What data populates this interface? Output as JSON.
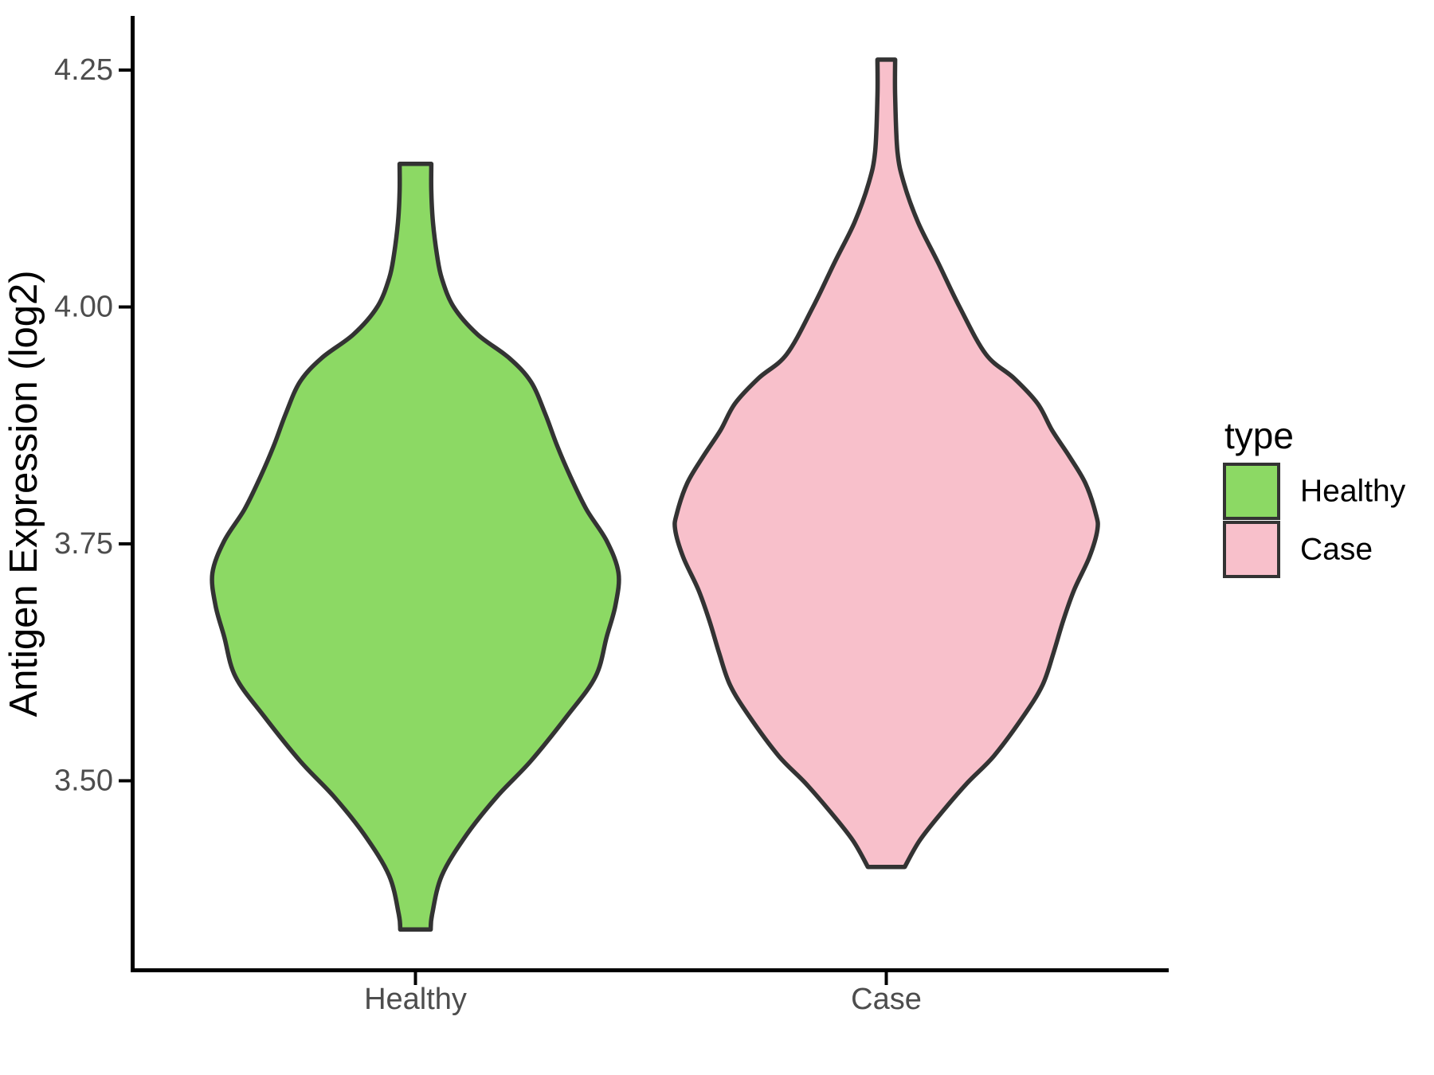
{
  "chart_data": {
    "type": "violin",
    "title": "",
    "xlabel": "",
    "ylabel": "Antigen Expression (log2)",
    "categories": [
      "Healthy",
      "Case"
    ],
    "y_tick_labels": [
      "4.25",
      "4.00",
      "3.75",
      "3.50"
    ],
    "y_tick_values": [
      4.25,
      4.0,
      3.75,
      3.5
    ],
    "ylim": [
      3.3,
      4.31
    ],
    "grid": "off",
    "legend": {
      "title": "type",
      "position": "right",
      "entries": [
        {
          "label": "Healthy",
          "color": "#8CD964"
        },
        {
          "label": "Case",
          "color": "#F8C0CB"
        }
      ]
    },
    "series": [
      {
        "name": "Healthy",
        "fill": "#8CD964",
        "outline": "#333333",
        "value_range": [
          3.34,
          4.15
        ],
        "density_profile": [
          [
            4.151,
            0.075
          ],
          [
            4.122,
            0.075
          ],
          [
            4.089,
            0.083
          ],
          [
            4.055,
            0.102
          ],
          [
            4.03,
            0.125
          ],
          [
            4.0,
            0.181
          ],
          [
            3.971,
            0.294
          ],
          [
            3.946,
            0.445
          ],
          [
            3.921,
            0.547
          ],
          [
            3.887,
            0.615
          ],
          [
            3.853,
            0.672
          ],
          [
            3.82,
            0.736
          ],
          [
            3.786,
            0.811
          ],
          [
            3.753,
            0.906
          ],
          [
            3.719,
            0.962
          ],
          [
            3.685,
            0.947
          ],
          [
            3.652,
            0.906
          ],
          [
            3.61,
            0.853
          ],
          [
            3.568,
            0.717
          ],
          [
            3.521,
            0.547
          ],
          [
            3.484,
            0.389
          ],
          [
            3.443,
            0.242
          ],
          [
            3.4,
            0.125
          ],
          [
            3.359,
            0.079
          ],
          [
            3.343,
            0.072
          ]
        ]
      },
      {
        "name": "Case",
        "fill": "#F8C0CB",
        "outline": "#333333",
        "value_range": [
          3.41,
          4.26
        ],
        "density_profile": [
          [
            4.261,
            0.042
          ],
          [
            4.223,
            0.042
          ],
          [
            4.164,
            0.053
          ],
          [
            4.131,
            0.083
          ],
          [
            4.089,
            0.151
          ],
          [
            4.047,
            0.245
          ],
          [
            4.0,
            0.347
          ],
          [
            3.95,
            0.472
          ],
          [
            3.925,
            0.604
          ],
          [
            3.898,
            0.717
          ],
          [
            3.87,
            0.785
          ],
          [
            3.842,
            0.868
          ],
          [
            3.814,
            0.943
          ],
          [
            3.782,
            0.992
          ],
          [
            3.765,
            1.0
          ],
          [
            3.736,
            0.962
          ],
          [
            3.702,
            0.891
          ],
          [
            3.669,
            0.838
          ],
          [
            3.635,
            0.792
          ],
          [
            3.601,
            0.74
          ],
          [
            3.568,
            0.649
          ],
          [
            3.526,
            0.509
          ],
          [
            3.498,
            0.385
          ],
          [
            3.467,
            0.264
          ],
          [
            3.437,
            0.158
          ],
          [
            3.409,
            0.087
          ]
        ]
      }
    ]
  }
}
